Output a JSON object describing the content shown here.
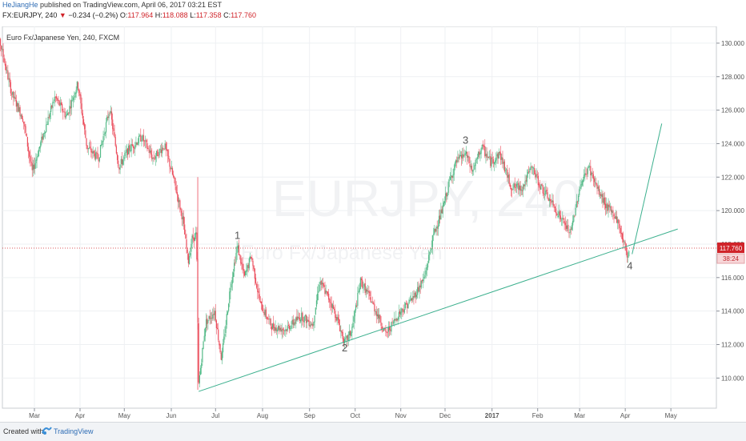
{
  "header": {
    "author": "HeJiangHe",
    "published": "published on TradingView.com, April 06, 2017 03:21 EST",
    "symbol": "FX:EURJPY, 240",
    "change_arrow": "▼",
    "change": "−0.234 (−0.2%)",
    "open_label": "O:",
    "open": "117.964",
    "high_label": "H:",
    "high": "118.088",
    "low_label": "L:",
    "low": "117.358",
    "close_label": "C:",
    "close": "117.760"
  },
  "footer": {
    "created_with": "Created with",
    "brand": "TradingView",
    "logo_icon": "tradingview-logo-icon"
  },
  "chart_data": {
    "type": "candlestick",
    "legend": "Euro Fx/Japanese Yen, 240, FXCM",
    "watermark_main": "EURJPY, 240",
    "watermark_sub": "Euro Fx/Japanese Yen",
    "ylim": [
      108.2,
      131.0
    ],
    "y_ticks": [
      110.0,
      112.0,
      114.0,
      116.0,
      118.0,
      120.0,
      122.0,
      124.0,
      126.0,
      128.0,
      130.0
    ],
    "x_ticks": [
      {
        "label": "Mar",
        "t": 1.0
      },
      {
        "label": "Apr",
        "t": 2.0
      },
      {
        "label": "May",
        "t": 2.97
      },
      {
        "label": "Jun",
        "t": 4.0
      },
      {
        "label": "Jul",
        "t": 4.97
      },
      {
        "label": "Aug",
        "t": 6.0
      },
      {
        "label": "Sep",
        "t": 7.03
      },
      {
        "label": "Oct",
        "t": 8.03
      },
      {
        "label": "Nov",
        "t": 9.03
      },
      {
        "label": "Dec",
        "t": 10.0
      },
      {
        "label": "2017",
        "t": 11.03,
        "bold": true
      },
      {
        "label": "Feb",
        "t": 12.03
      },
      {
        "label": "Mar",
        "t": 12.95
      },
      {
        "label": "Apr",
        "t": 13.95
      },
      {
        "label": "May",
        "t": 14.95
      },
      {
        "label": "Jun",
        "t": 15.97
      }
    ],
    "price_path": [
      [
        0.25,
        130.0
      ],
      [
        0.5,
        127.0
      ],
      [
        0.75,
        125.5
      ],
      [
        0.95,
        122.3
      ],
      [
        1.2,
        124.6
      ],
      [
        1.45,
        126.8
      ],
      [
        1.7,
        125.6
      ],
      [
        1.95,
        127.6
      ],
      [
        2.15,
        123.8
      ],
      [
        2.4,
        123.1
      ],
      [
        2.65,
        126.1
      ],
      [
        2.85,
        122.6
      ],
      [
        3.05,
        123.6
      ],
      [
        3.35,
        124.4
      ],
      [
        3.6,
        123.1
      ],
      [
        3.85,
        123.9
      ],
      [
        4.05,
        121.9
      ],
      [
        4.25,
        119.5
      ],
      [
        4.37,
        116.9
      ],
      [
        4.45,
        118.3
      ],
      [
        4.55,
        118.6
      ],
      [
        4.6,
        109.6
      ],
      [
        4.75,
        113.3
      ],
      [
        4.95,
        114.0
      ],
      [
        5.1,
        111.1
      ],
      [
        5.3,
        115.6
      ],
      [
        5.45,
        117.9
      ],
      [
        5.6,
        116.0
      ],
      [
        5.75,
        117.3
      ],
      [
        5.95,
        114.4
      ],
      [
        6.2,
        113.1
      ],
      [
        6.5,
        112.9
      ],
      [
        6.85,
        113.7
      ],
      [
        7.1,
        113.2
      ],
      [
        7.25,
        115.8
      ],
      [
        7.5,
        114.5
      ],
      [
        7.65,
        113.4
      ],
      [
        7.8,
        112.1
      ],
      [
        7.95,
        112.8
      ],
      [
        8.15,
        115.8
      ],
      [
        8.35,
        114.8
      ],
      [
        8.55,
        113.6
      ],
      [
        8.7,
        112.6
      ],
      [
        9.0,
        113.9
      ],
      [
        9.3,
        114.8
      ],
      [
        9.55,
        116.0
      ],
      [
        9.75,
        118.6
      ],
      [
        9.95,
        120.1
      ],
      [
        10.1,
        121.8
      ],
      [
        10.25,
        122.9
      ],
      [
        10.45,
        123.4
      ],
      [
        10.6,
        122.3
      ],
      [
        10.8,
        123.8
      ],
      [
        11.0,
        122.9
      ],
      [
        11.2,
        123.4
      ],
      [
        11.45,
        121.4
      ],
      [
        11.7,
        121.4
      ],
      [
        11.9,
        122.6
      ],
      [
        12.1,
        121.4
      ],
      [
        12.35,
        120.4
      ],
      [
        12.55,
        119.5
      ],
      [
        12.75,
        118.6
      ],
      [
        12.95,
        121.4
      ],
      [
        13.15,
        122.6
      ],
      [
        13.35,
        121.2
      ],
      [
        13.55,
        120.2
      ],
      [
        13.75,
        119.6
      ],
      [
        13.9,
        118.3
      ],
      [
        14.0,
        117.3
      ],
      [
        14.05,
        117.76
      ]
    ],
    "trendline": {
      "from": [
        4.6,
        109.2
      ],
      "to": [
        15.1,
        118.9
      ]
    },
    "projection": {
      "from": [
        14.1,
        117.4
      ],
      "to": [
        14.75,
        125.2
      ]
    },
    "wave_labels": [
      {
        "text": "1",
        "t": 5.45,
        "y": 118.3
      },
      {
        "text": "2",
        "t": 7.8,
        "y": 111.6
      },
      {
        "text": "3",
        "t": 10.45,
        "y": 124.0
      },
      {
        "text": "4",
        "t": 14.05,
        "y": 116.5
      }
    ],
    "last_price": {
      "value": 117.76,
      "label": "117.760",
      "countdown": "38:24"
    },
    "colors": {
      "up": "#53b987",
      "down": "#eb4d5c",
      "lines": "#3cb08e",
      "price_line": "#d0242a"
    }
  }
}
